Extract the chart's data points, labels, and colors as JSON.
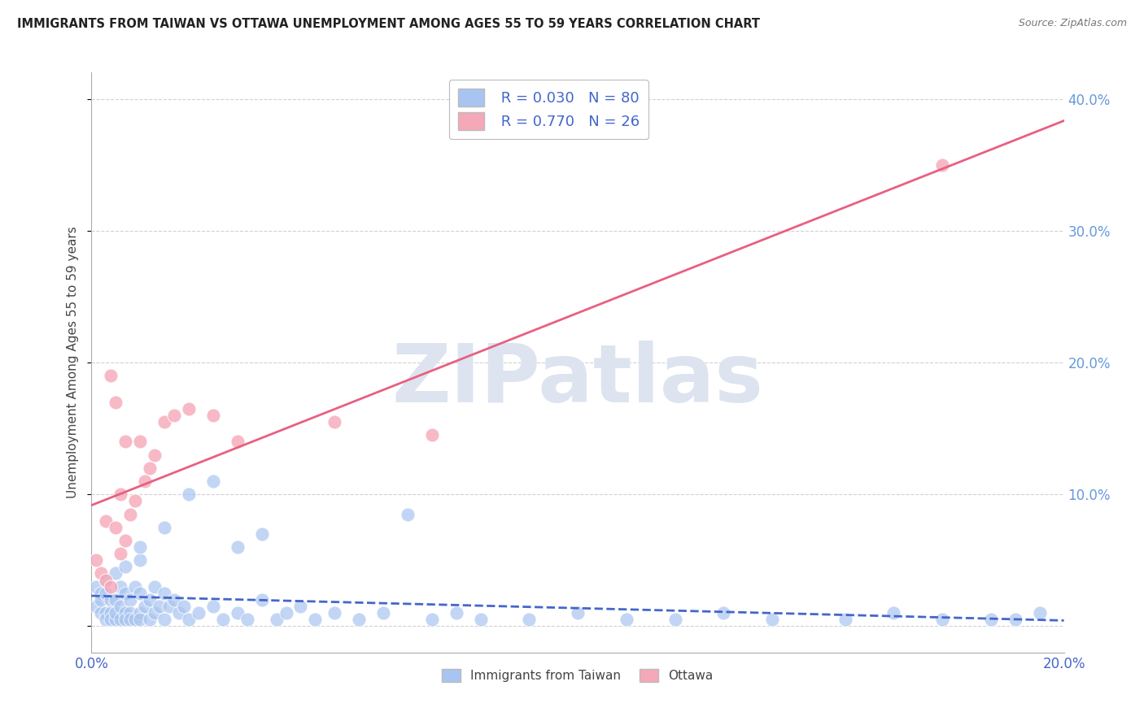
{
  "title": "IMMIGRANTS FROM TAIWAN VS OTTAWA UNEMPLOYMENT AMONG AGES 55 TO 59 YEARS CORRELATION CHART",
  "source": "Source: ZipAtlas.com",
  "ylabel": "Unemployment Among Ages 55 to 59 years",
  "xlim": [
    0.0,
    0.2
  ],
  "ylim": [
    -0.02,
    0.42
  ],
  "series1_label": "Immigrants from Taiwan",
  "series1_R": "0.030",
  "series1_N": "80",
  "series1_color": "#a8c4f0",
  "series1_line_color": "#4466cc",
  "series2_label": "Ottawa",
  "series2_R": "0.770",
  "series2_N": "26",
  "series2_color": "#f5a8b8",
  "series2_line_color": "#e86080",
  "watermark_text": "ZIPatlas",
  "watermark_color": "#dde4f0",
  "legend_text_color": "#4466cc",
  "background_color": "#ffffff",
  "grid_color": "#cccccc",
  "right_axis_color": "#6699dd",
  "series1_x": [
    0.001,
    0.001,
    0.002,
    0.002,
    0.002,
    0.003,
    0.003,
    0.003,
    0.003,
    0.004,
    0.004,
    0.004,
    0.005,
    0.005,
    0.005,
    0.005,
    0.006,
    0.006,
    0.006,
    0.007,
    0.007,
    0.007,
    0.007,
    0.008,
    0.008,
    0.008,
    0.009,
    0.009,
    0.01,
    0.01,
    0.01,
    0.01,
    0.011,
    0.012,
    0.012,
    0.013,
    0.013,
    0.014,
    0.015,
    0.015,
    0.016,
    0.017,
    0.018,
    0.019,
    0.02,
    0.022,
    0.025,
    0.027,
    0.03,
    0.032,
    0.035,
    0.038,
    0.04,
    0.043,
    0.046,
    0.05,
    0.055,
    0.06,
    0.065,
    0.07,
    0.075,
    0.08,
    0.09,
    0.1,
    0.11,
    0.12,
    0.13,
    0.14,
    0.155,
    0.165,
    0.175,
    0.185,
    0.19,
    0.195,
    0.01,
    0.015,
    0.02,
    0.025,
    0.03,
    0.035
  ],
  "series1_y": [
    0.03,
    0.015,
    0.025,
    0.01,
    0.02,
    0.035,
    0.01,
    0.025,
    0.005,
    0.02,
    0.01,
    0.005,
    0.04,
    0.005,
    0.02,
    0.01,
    0.015,
    0.03,
    0.005,
    0.025,
    0.01,
    0.005,
    0.045,
    0.02,
    0.01,
    0.005,
    0.03,
    0.005,
    0.05,
    0.01,
    0.005,
    0.025,
    0.015,
    0.02,
    0.005,
    0.03,
    0.01,
    0.015,
    0.025,
    0.005,
    0.015,
    0.02,
    0.01,
    0.015,
    0.005,
    0.01,
    0.015,
    0.005,
    0.01,
    0.005,
    0.02,
    0.005,
    0.01,
    0.015,
    0.005,
    0.01,
    0.005,
    0.01,
    0.085,
    0.005,
    0.01,
    0.005,
    0.005,
    0.01,
    0.005,
    0.005,
    0.01,
    0.005,
    0.005,
    0.01,
    0.005,
    0.005,
    0.005,
    0.01,
    0.06,
    0.075,
    0.1,
    0.11,
    0.06,
    0.07
  ],
  "series2_x": [
    0.001,
    0.002,
    0.003,
    0.003,
    0.004,
    0.004,
    0.005,
    0.005,
    0.006,
    0.006,
    0.007,
    0.007,
    0.008,
    0.009,
    0.01,
    0.011,
    0.012,
    0.013,
    0.015,
    0.017,
    0.02,
    0.025,
    0.03,
    0.05,
    0.07,
    0.175
  ],
  "series2_y": [
    0.05,
    0.04,
    0.08,
    0.035,
    0.19,
    0.03,
    0.17,
    0.075,
    0.1,
    0.055,
    0.14,
    0.065,
    0.085,
    0.095,
    0.14,
    0.11,
    0.12,
    0.13,
    0.155,
    0.16,
    0.165,
    0.16,
    0.14,
    0.155,
    0.145,
    0.35
  ]
}
